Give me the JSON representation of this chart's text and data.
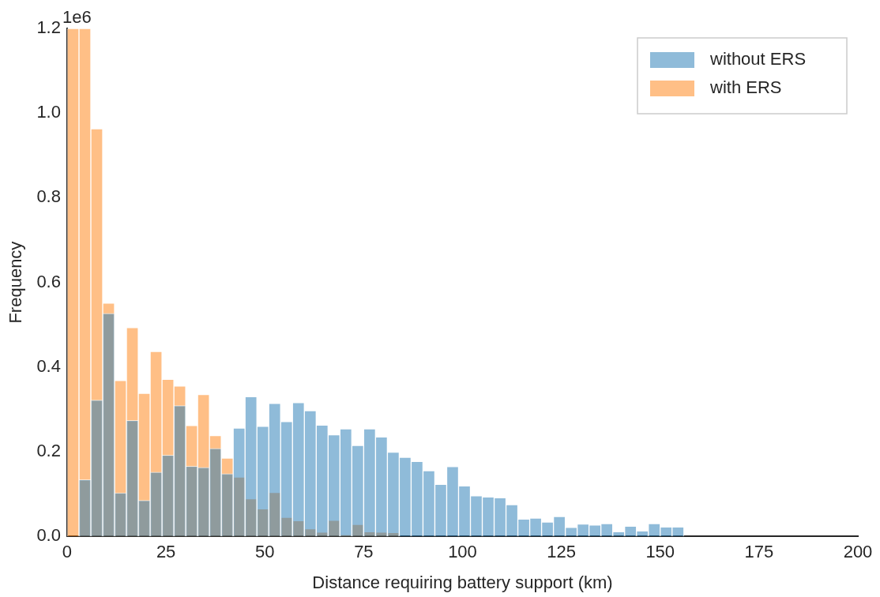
{
  "chart_data": {
    "type": "histogram",
    "xlabel": "Distance requiring battery support (km)",
    "ylabel": "Frequency",
    "annotations": [
      "1e6"
    ],
    "bins": [
      0,
      3,
      6,
      9,
      12,
      15,
      18,
      21,
      24,
      27,
      30,
      33,
      36,
      39,
      42,
      45,
      48,
      51,
      54,
      57,
      60,
      63,
      66,
      69,
      72,
      75,
      78,
      81,
      84,
      87,
      90,
      93,
      96,
      99,
      102,
      105,
      108,
      111,
      114,
      117,
      120,
      123,
      126,
      129,
      132,
      135,
      138,
      141,
      144,
      147,
      150,
      153,
      156,
      159
    ],
    "series": [
      {
        "name": "without ERS",
        "color": "#1f77b4",
        "values": [
          null,
          0.134,
          0.322,
          0.527,
          0.103,
          0.274,
          0.085,
          0.152,
          0.192,
          0.309,
          0.166,
          0.163,
          0.208,
          0.148,
          0.256,
          0.33,
          0.26,
          0.314,
          0.271,
          0.316,
          0.297,
          0.263,
          0.24,
          0.254,
          0.215,
          0.254,
          0.235,
          0.199,
          0.187,
          0.177,
          0.155,
          0.123,
          0.165,
          0.119,
          0.096,
          0.093,
          0.091,
          0.075,
          0.041,
          0.043,
          0.034,
          0.047,
          0.021,
          0.029,
          0.027,
          0.03,
          0.011,
          0.024,
          0.013,
          0.03,
          0.022,
          0.022,
          null
        ]
      },
      {
        "name": "with ERS",
        "color": "#ff7f0e",
        "values": [
          1.2,
          1.2,
          0.963,
          0.551,
          0.368,
          0.493,
          0.338,
          0.437,
          0.371,
          0.355,
          0.262,
          0.335,
          0.238,
          0.185,
          0.14,
          0.089,
          0.065,
          0.104,
          0.045,
          0.037,
          0.018,
          0.01,
          0.038,
          0.004,
          0.028,
          0.011,
          0.01,
          0.009,
          null,
          null,
          null,
          null,
          null,
          null,
          null,
          null,
          null,
          null,
          null,
          null,
          null,
          null,
          null,
          null,
          null,
          null,
          null,
          null,
          null,
          null,
          null,
          null,
          null
        ]
      }
    ],
    "xlim": [
      0,
      200
    ],
    "xticks": [
      0,
      25,
      50,
      75,
      100,
      125,
      150,
      175,
      200
    ],
    "ylim": [
      0,
      1.2
    ],
    "yticks": [
      {
        "value": 0,
        "label": "0.0"
      },
      {
        "value": 0.2,
        "label": "0.2"
      },
      {
        "value": 0.4,
        "label": "0.4"
      },
      {
        "value": 0.6,
        "label": "0.6"
      },
      {
        "value": 0.8,
        "label": "0.8"
      },
      {
        "value": 1,
        "label": "1.0"
      },
      {
        "value": 1.2,
        "label": "1.2"
      }
    ],
    "grid": false,
    "legend": "top right"
  }
}
